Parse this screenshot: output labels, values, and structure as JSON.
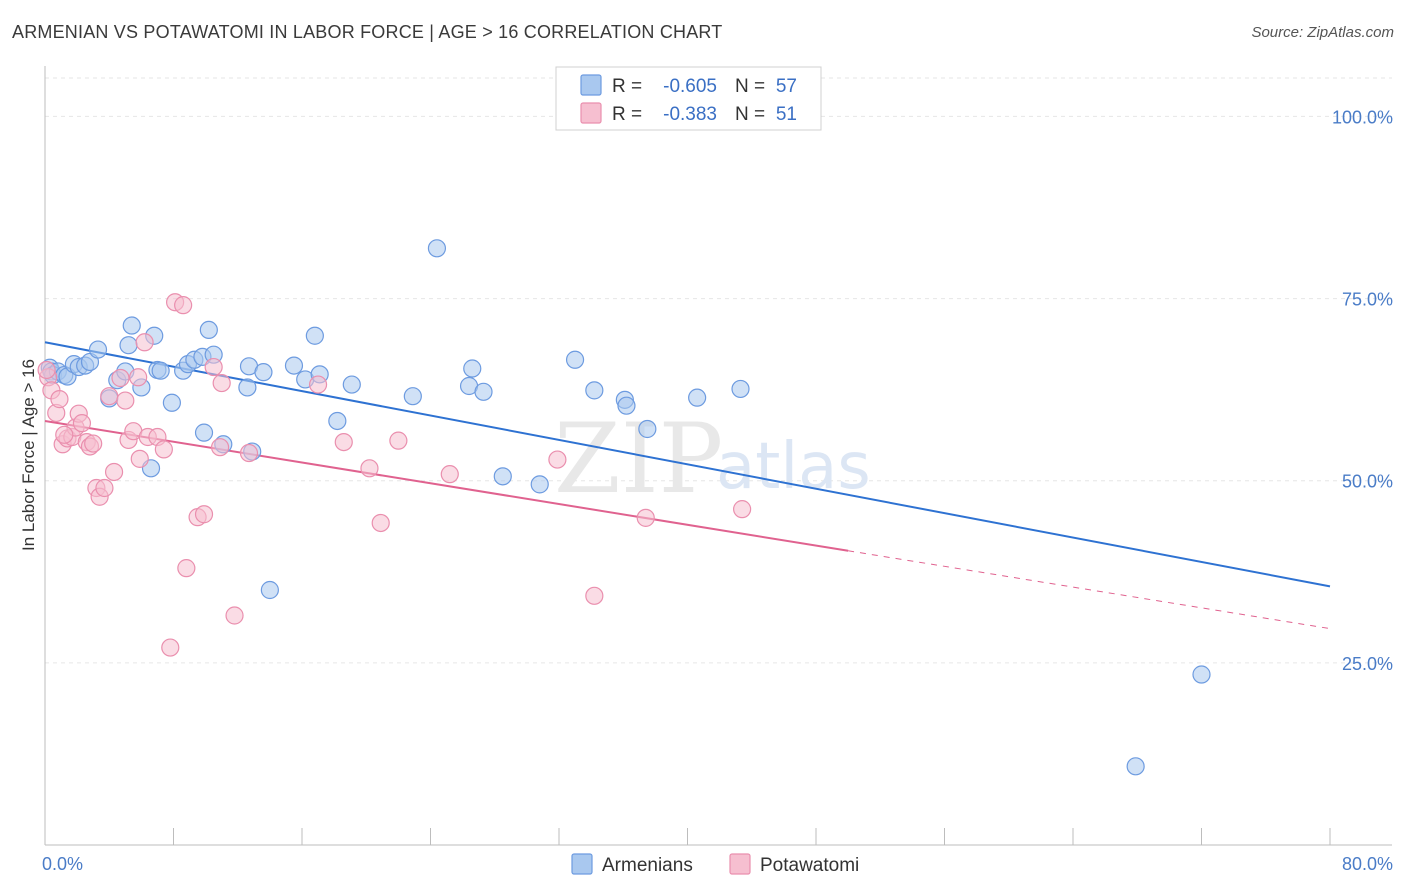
{
  "title": "ARMENIAN VS POTAWATOMI IN LABOR FORCE | AGE > 16 CORRELATION CHART",
  "source": "Source: ZipAtlas.com",
  "watermark": {
    "zip": "ZIP",
    "atlas": "atlas"
  },
  "colors": {
    "armenians_fill": "#a9c8ef",
    "armenians_stroke": "#6d9be0",
    "armenians_line": "#2e72d2",
    "potawatomi_fill": "#f6bfd0",
    "potawatomi_stroke": "#ea8fae",
    "potawatomi_line": "#e0628f",
    "grid": "#e6e6e6",
    "tick_label": "#4a7cc7"
  },
  "legend": {
    "rows": [
      {
        "r_label": "R =",
        "r_value": "-0.605",
        "n_label": "N =",
        "n_value": "57",
        "series": "armenians"
      },
      {
        "r_label": "R =",
        "r_value": "-0.383",
        "n_label": "N =",
        "n_value": "51",
        "series": "potawatomi"
      }
    ],
    "bottom": [
      {
        "label": "Armenians",
        "series": "armenians"
      },
      {
        "label": "Potawatomi",
        "series": "potawatomi"
      }
    ]
  },
  "chart_data": {
    "type": "scatter",
    "title": "ARMENIAN VS POTAWATOMI IN LABOR FORCE | AGE > 16 CORRELATION CHART",
    "xlabel": "",
    "ylabel": "In Labor Force | Age > 16",
    "xlim": [
      0,
      80
    ],
    "ylim": [
      0,
      105
    ],
    "x_tick_labels": [
      {
        "value": 0,
        "label": "0.0%"
      },
      {
        "value": 80,
        "label": "80.0%"
      }
    ],
    "y_tick_labels": [
      {
        "value": 100,
        "label": "100.0%"
      },
      {
        "value": 75,
        "label": "75.0%"
      },
      {
        "value": 50,
        "label": "50.0%"
      },
      {
        "value": 25,
        "label": "25.0%"
      }
    ],
    "grid": true,
    "legend_position": "top-center",
    "series": [
      {
        "name": "Armenians",
        "key": "armenians",
        "r": -0.605,
        "n": 57,
        "trend": {
          "x": [
            0,
            80
          ],
          "y": [
            69.0,
            35.5
          ],
          "dashed_after": null
        },
        "points": [
          [
            0.3,
            65.5
          ],
          [
            0.4,
            65.0
          ],
          [
            0.5,
            64.5
          ],
          [
            0.8,
            65.0
          ],
          [
            1.2,
            64.5
          ],
          [
            1.4,
            64.3
          ],
          [
            1.8,
            66.0
          ],
          [
            2.1,
            65.6
          ],
          [
            2.5,
            65.8
          ],
          [
            2.8,
            66.3
          ],
          [
            3.3,
            68.0
          ],
          [
            4.0,
            61.3
          ],
          [
            4.5,
            63.8
          ],
          [
            5.0,
            65.0
          ],
          [
            5.2,
            68.6
          ],
          [
            5.4,
            71.3
          ],
          [
            6.0,
            62.8
          ],
          [
            6.6,
            51.7
          ],
          [
            6.8,
            69.9
          ],
          [
            7.0,
            65.2
          ],
          [
            7.2,
            65.1
          ],
          [
            7.9,
            60.7
          ],
          [
            8.6,
            65.1
          ],
          [
            8.9,
            66.0
          ],
          [
            9.3,
            66.6
          ],
          [
            9.8,
            67.0
          ],
          [
            9.9,
            56.6
          ],
          [
            10.2,
            70.7
          ],
          [
            10.5,
            67.3
          ],
          [
            11.1,
            55.0
          ],
          [
            12.6,
            62.8
          ],
          [
            12.7,
            65.7
          ],
          [
            12.9,
            54.0
          ],
          [
            13.6,
            64.9
          ],
          [
            14.0,
            35.0
          ],
          [
            15.5,
            65.8
          ],
          [
            16.2,
            63.9
          ],
          [
            16.8,
            69.9
          ],
          [
            17.1,
            64.6
          ],
          [
            18.2,
            58.2
          ],
          [
            19.1,
            63.2
          ],
          [
            22.9,
            61.6
          ],
          [
            24.4,
            81.9
          ],
          [
            26.4,
            63.0
          ],
          [
            26.6,
            65.4
          ],
          [
            27.3,
            62.2
          ],
          [
            28.5,
            50.6
          ],
          [
            30.8,
            49.5
          ],
          [
            33.0,
            66.6
          ],
          [
            34.2,
            62.4
          ],
          [
            36.1,
            61.1
          ],
          [
            36.2,
            60.3
          ],
          [
            37.5,
            57.1
          ],
          [
            40.6,
            61.4
          ],
          [
            43.3,
            62.6
          ],
          [
            72.0,
            23.4
          ],
          [
            67.9,
            10.8
          ]
        ]
      },
      {
        "name": "Potawatomi",
        "key": "potawatomi",
        "r": -0.383,
        "n": 51,
        "trend": {
          "x": [
            0,
            80
          ],
          "y": [
            58.2,
            29.7
          ],
          "solid_until": 50
        },
        "points": [
          [
            0.2,
            64.2
          ],
          [
            0.4,
            62.4
          ],
          [
            0.7,
            59.3
          ],
          [
            0.9,
            61.2
          ],
          [
            1.1,
            55.0
          ],
          [
            1.4,
            55.8
          ],
          [
            1.7,
            56.0
          ],
          [
            1.9,
            57.3
          ],
          [
            2.1,
            59.2
          ],
          [
            2.3,
            57.9
          ],
          [
            2.6,
            55.3
          ],
          [
            2.8,
            54.7
          ],
          [
            3.0,
            55.1
          ],
          [
            3.2,
            49.0
          ],
          [
            3.4,
            47.8
          ],
          [
            3.7,
            49.0
          ],
          [
            4.0,
            61.6
          ],
          [
            4.3,
            51.2
          ],
          [
            4.7,
            64.1
          ],
          [
            5.0,
            61.0
          ],
          [
            5.2,
            55.6
          ],
          [
            5.5,
            56.8
          ],
          [
            5.8,
            64.2
          ],
          [
            5.9,
            53.0
          ],
          [
            6.2,
            69.0
          ],
          [
            6.4,
            56.0
          ],
          [
            7.0,
            56.0
          ],
          [
            7.4,
            54.3
          ],
          [
            7.8,
            27.1
          ],
          [
            8.1,
            74.5
          ],
          [
            8.6,
            74.1
          ],
          [
            8.8,
            38.0
          ],
          [
            9.5,
            45.0
          ],
          [
            9.9,
            45.4
          ],
          [
            10.5,
            65.6
          ],
          [
            10.9,
            54.6
          ],
          [
            11.0,
            63.4
          ],
          [
            11.8,
            31.5
          ],
          [
            12.7,
            53.8
          ],
          [
            17.0,
            63.2
          ],
          [
            18.6,
            55.3
          ],
          [
            20.2,
            51.7
          ],
          [
            20.9,
            44.2
          ],
          [
            22.0,
            55.5
          ],
          [
            25.2,
            50.9
          ],
          [
            31.9,
            52.9
          ],
          [
            34.2,
            34.2
          ],
          [
            37.4,
            44.9
          ],
          [
            43.4,
            46.1
          ],
          [
            0.1,
            65.2
          ],
          [
            1.2,
            56.3
          ]
        ]
      }
    ]
  }
}
